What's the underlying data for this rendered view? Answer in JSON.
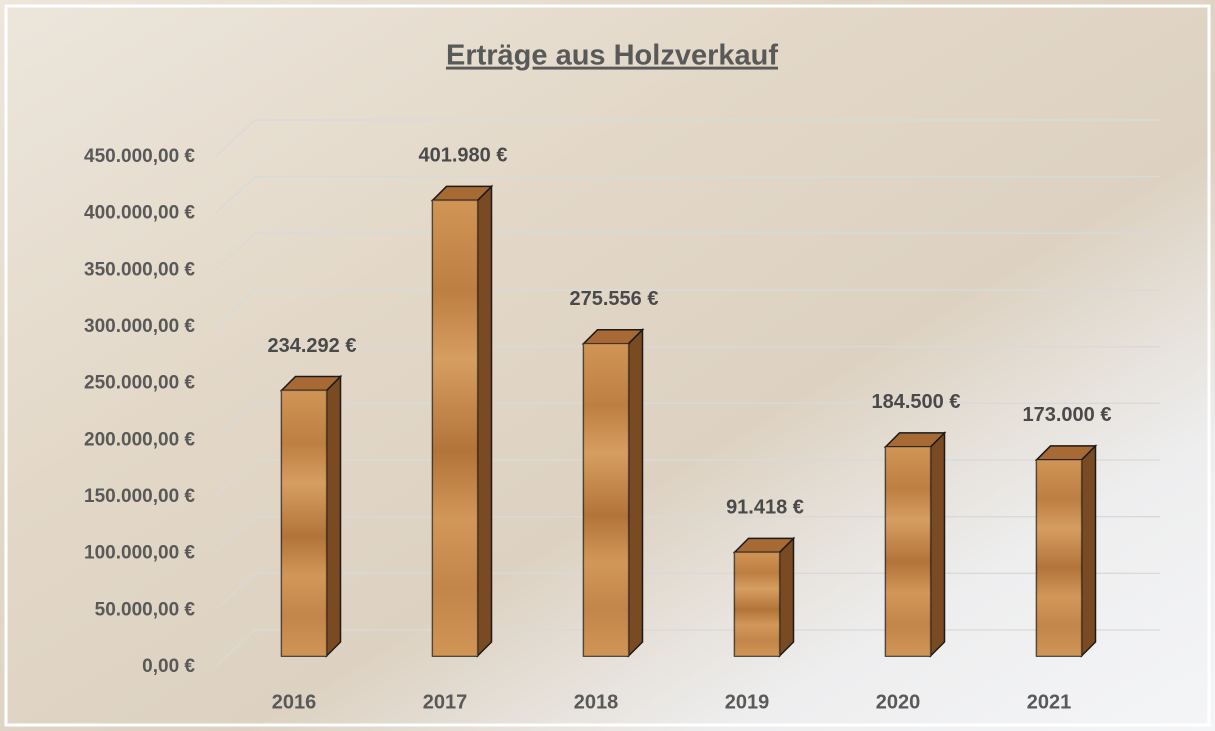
{
  "chart_data": {
    "type": "bar",
    "title": "Erträge aus Holzverkauf",
    "categories": [
      "2016",
      "2017",
      "2018",
      "2019",
      "2020",
      "2021"
    ],
    "values": [
      234292,
      401980,
      275556,
      91418,
      184500,
      173000
    ],
    "value_labels": [
      "234.292 €",
      "401.980 €",
      "275.556 €",
      "91.418 €",
      "184.500 €",
      "173.000 €"
    ],
    "color": "#c98a4b",
    "ylim": [
      0,
      450000
    ],
    "yticks": [
      {
        "value": 0,
        "label": "0,00 €"
      },
      {
        "value": 50000,
        "label": "50.000,00 €"
      },
      {
        "value": 100000,
        "label": "100.000,00 €"
      },
      {
        "value": 150000,
        "label": "150.000,00 €"
      },
      {
        "value": 200000,
        "label": "200.000,00 €"
      },
      {
        "value": 250000,
        "label": "250.000,00 €"
      },
      {
        "value": 300000,
        "label": "300.000,00 €"
      },
      {
        "value": 350000,
        "label": "350.000,00 €"
      },
      {
        "value": 400000,
        "label": "400.000,00 €"
      },
      {
        "value": 450000,
        "label": "450.000,00 €"
      }
    ],
    "grid": true
  }
}
